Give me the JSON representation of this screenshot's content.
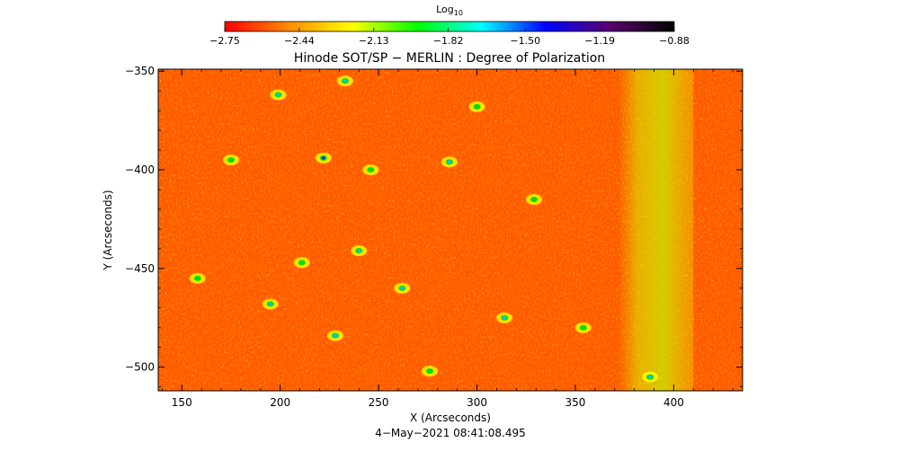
{
  "chart_data": {
    "type": "heatmap",
    "title": "Hinode SOT/SP − MERLIN : Degree of Polarization",
    "xlabel": "X (Arcseconds)",
    "ylabel": "Y (Arcseconds)",
    "timestamp": "4−May−2021 08:41:08.495",
    "xlim": [
      138,
      435
    ],
    "ylim": [
      -512,
      -349
    ],
    "x_ticks": [
      150,
      200,
      250,
      300,
      350,
      400
    ],
    "y_ticks": [
      -350,
      -400,
      -450,
      -500
    ],
    "x_tick_labels": [
      "150",
      "200",
      "250",
      "300",
      "350",
      "400"
    ],
    "y_tick_labels": [
      "−350",
      "−400",
      "−450",
      "−500"
    ],
    "colorbar": {
      "label_base": "Log",
      "label_sub": "10",
      "scale": "log10",
      "range": [
        -2.75,
        -0.88
      ],
      "ticks": [
        -2.75,
        -2.44,
        -2.13,
        -1.82,
        -1.5,
        -1.19,
        -0.88
      ],
      "tick_labels": [
        "−2.75",
        "−2.44",
        "−2.13",
        "−1.82",
        "−1.50",
        "−1.19",
        "−0.88"
      ],
      "colors": [
        "#ff0000",
        "#ff8c00",
        "#ffff00",
        "#00ff00",
        "#00ffff",
        "#0000ff",
        "#5a006e",
        "#000000"
      ]
    },
    "field_colors": {
      "background_low": "#ff5a00",
      "mid": "#ffa500",
      "high": "#ffff00",
      "plage": "#b4f000"
    },
    "features": [
      {
        "x": 222,
        "y": -394,
        "level": "high"
      },
      {
        "x": 286,
        "y": -396,
        "level": "mid"
      },
      {
        "x": 233,
        "y": -355,
        "level": "mid"
      },
      {
        "x": 199,
        "y": -362,
        "level": "mid"
      },
      {
        "x": 240,
        "y": -441,
        "level": "mid"
      },
      {
        "x": 228,
        "y": -484,
        "level": "mid"
      },
      {
        "x": 195,
        "y": -468,
        "level": "mid"
      },
      {
        "x": 314,
        "y": -475,
        "level": "mid"
      },
      {
        "x": 262,
        "y": -460,
        "level": "mid"
      },
      {
        "x": 388,
        "y": -505,
        "level": "mid"
      },
      {
        "x": 175,
        "y": -395,
        "level": "low"
      },
      {
        "x": 329,
        "y": -415,
        "level": "low"
      },
      {
        "x": 354,
        "y": -480,
        "level": "low"
      },
      {
        "x": 246,
        "y": -400,
        "level": "low"
      },
      {
        "x": 211,
        "y": -447,
        "level": "low"
      },
      {
        "x": 300,
        "y": -368,
        "level": "low"
      },
      {
        "x": 158,
        "y": -455,
        "level": "low"
      },
      {
        "x": 276,
        "y": -502,
        "level": "low"
      }
    ],
    "plage_band": {
      "x_start": 372,
      "x_end": 410
    }
  }
}
